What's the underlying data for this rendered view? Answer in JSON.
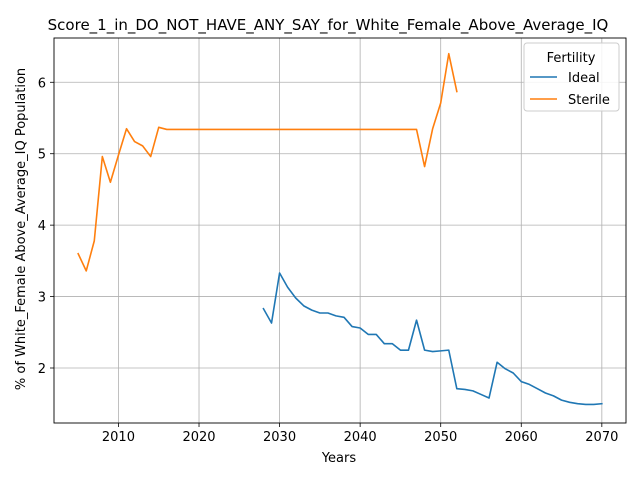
{
  "chart_data": {
    "type": "line",
    "title": "Score_1_in_DO_NOT_HAVE_ANY_SAY_for_White_Female_Above_Average_IQ",
    "xlabel": "Years",
    "ylabel": "% of White_Female Above_Average_IQ Population",
    "xlim": [
      2002,
      2073
    ],
    "ylim": [
      1.23,
      6.62
    ],
    "xticks": [
      2010,
      2020,
      2030,
      2040,
      2050,
      2060,
      2070
    ],
    "yticks": [
      2,
      3,
      4,
      5,
      6
    ],
    "grid": true,
    "legend": {
      "title": "Fertility",
      "placement": "top-right"
    },
    "series": [
      {
        "name": "Ideal",
        "color": "#1f77b4",
        "x": [
          2028,
          2029,
          2030,
          2031,
          2032,
          2033,
          2034,
          2035,
          2036,
          2037,
          2038,
          2039,
          2040,
          2041,
          2042,
          2043,
          2044,
          2045,
          2046,
          2047,
          2048,
          2049,
          2050,
          2051,
          2052,
          2053,
          2054,
          2055,
          2056,
          2057,
          2058,
          2059,
          2060,
          2061,
          2062,
          2063,
          2064,
          2065,
          2066,
          2067,
          2068,
          2069,
          2070
        ],
        "y": [
          2.83,
          2.63,
          3.33,
          3.13,
          2.98,
          2.87,
          2.81,
          2.77,
          2.77,
          2.73,
          2.71,
          2.58,
          2.56,
          2.47,
          2.47,
          2.34,
          2.34,
          2.25,
          2.25,
          2.67,
          2.25,
          2.23,
          2.24,
          2.25,
          1.71,
          1.7,
          1.68,
          1.63,
          1.58,
          2.08,
          1.99,
          1.93,
          1.81,
          1.77,
          1.71,
          1.65,
          1.61,
          1.55,
          1.52,
          1.5,
          1.49,
          1.49,
          1.5
        ]
      },
      {
        "name": "Sterile",
        "color": "#ff7f0e",
        "x": [
          2005,
          2006,
          2007,
          2008,
          2009,
          2010,
          2011,
          2012,
          2013,
          2014,
          2015,
          2016,
          2017,
          2018,
          2019,
          2020,
          2021,
          2022,
          2023,
          2024,
          2025,
          2026,
          2027,
          2028,
          2029,
          2030,
          2031,
          2032,
          2033,
          2034,
          2035,
          2036,
          2037,
          2038,
          2039,
          2040,
          2041,
          2042,
          2043,
          2044,
          2045,
          2046,
          2047,
          2048,
          2049,
          2050,
          2051,
          2052
        ],
        "y": [
          3.6,
          3.36,
          3.78,
          4.96,
          4.6,
          4.98,
          5.35,
          5.17,
          5.11,
          4.96,
          5.37,
          5.34,
          5.34,
          5.34,
          5.34,
          5.34,
          5.34,
          5.34,
          5.34,
          5.34,
          5.34,
          5.34,
          5.34,
          5.34,
          5.34,
          5.34,
          5.34,
          5.34,
          5.34,
          5.34,
          5.34,
          5.34,
          5.34,
          5.34,
          5.34,
          5.34,
          5.34,
          5.34,
          5.34,
          5.34,
          5.34,
          5.34,
          5.34,
          4.82,
          5.35,
          5.71,
          6.4,
          5.87
        ]
      }
    ]
  }
}
